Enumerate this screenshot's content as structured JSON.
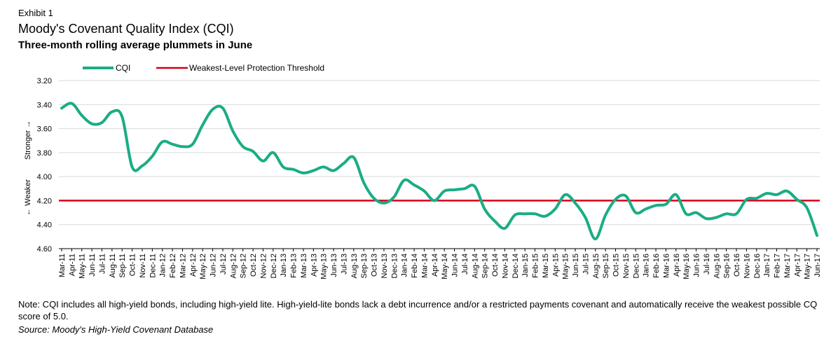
{
  "header": {
    "exhibit": "Exhibit 1",
    "title": "Moody's Covenant Quality Index (CQI)",
    "subtitle": "Three-month rolling average plummets in June"
  },
  "footer": {
    "note": "Note: CQI includes all high-yield bonds, including high-yield lite. High-yield-lite bonds lack a debt incurrence and/or a restricted payments covenant and automatically receive the weakest possible CQ score of 5.0.",
    "source": "Source: Moody's High-Yield Covenant Database"
  },
  "colors": {
    "cqi": "#1aad84",
    "threshold": "#d6001c",
    "grid": "#d9d9d9"
  },
  "chart_data": {
    "type": "line",
    "y_inverted": true,
    "ylim": [
      3.2,
      4.6
    ],
    "yticks": [
      "3.20",
      "3.40",
      "3.60",
      "3.80",
      "4.00",
      "4.20",
      "4.40",
      "4.60"
    ],
    "ylabel_top": "Stronger →",
    "ylabel_bottom": "← Weaker",
    "grid": true,
    "legend_position": "top-left",
    "categories": [
      "Mar-11",
      "Apr-11",
      "May-11",
      "Jun-11",
      "Jul-11",
      "Aug-11",
      "Sep-11",
      "Oct-11",
      "Nov-11",
      "Dec-11",
      "Jan-12",
      "Feb-12",
      "Mar-12",
      "Apr-12",
      "May-12",
      "Jun-12",
      "Jul-12",
      "Aug-12",
      "Sep-12",
      "Oct-12",
      "Nov-12",
      "Dec-12",
      "Jan-13",
      "Feb-13",
      "Mar-13",
      "Apr-13",
      "May-13",
      "Jun-13",
      "Jul-13",
      "Aug-13",
      "Sep-13",
      "Oct-13",
      "Nov-13",
      "Dec-13",
      "Jan-14",
      "Feb-14",
      "Mar-14",
      "Apr-14",
      "May-14",
      "Jun-14",
      "Jul-14",
      "Aug-14",
      "Sep-14",
      "Oct-14",
      "Nov-14",
      "Dec-14",
      "Jan-15",
      "Feb-15",
      "Mar-15",
      "Apr-15",
      "May-15",
      "Jun-15",
      "Jul-15",
      "Aug-15",
      "Sep-15",
      "Oct-15",
      "Nov-15",
      "Dec-15",
      "Jan-16",
      "Feb-16",
      "Mar-16",
      "Apr-16",
      "May-16",
      "Jun-16",
      "Jul-16",
      "Aug-16",
      "Sep-16",
      "Oct-16",
      "Nov-16",
      "Dec-16",
      "Jan-17",
      "Feb-17",
      "Mar-17",
      "Apr-17",
      "May-17",
      "Jun-17"
    ],
    "series": [
      {
        "name": "CQI",
        "values": [
          3.43,
          3.39,
          3.49,
          3.56,
          3.55,
          3.46,
          3.5,
          3.92,
          3.91,
          3.83,
          3.71,
          3.73,
          3.75,
          3.73,
          3.57,
          3.44,
          3.43,
          3.62,
          3.75,
          3.79,
          3.87,
          3.8,
          3.92,
          3.94,
          3.97,
          3.95,
          3.92,
          3.95,
          3.89,
          3.84,
          4.05,
          4.18,
          4.22,
          4.17,
          4.03,
          4.07,
          4.12,
          4.2,
          4.12,
          4.11,
          4.1,
          4.08,
          4.27,
          4.37,
          4.43,
          4.32,
          4.31,
          4.31,
          4.33,
          4.27,
          4.15,
          4.22,
          4.34,
          4.52,
          4.32,
          4.19,
          4.16,
          4.3,
          4.27,
          4.24,
          4.23,
          4.15,
          4.31,
          4.3,
          4.35,
          4.34,
          4.31,
          4.31,
          4.19,
          4.18,
          4.14,
          4.15,
          4.12,
          4.19,
          4.26,
          4.49
        ]
      },
      {
        "name": "Weakest-Level Protection Threshold",
        "constant": 4.2
      }
    ]
  }
}
